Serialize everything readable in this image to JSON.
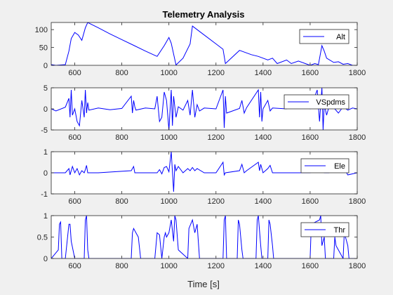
{
  "figure": {
    "title": "Telemetry Analysis",
    "xlabel": "Time [s]",
    "background": "#f0f0f0",
    "axes_background": "#ffffff",
    "line_color": "#0000ff"
  },
  "chart_data": [
    {
      "type": "line",
      "xlim": [
        500,
        1800
      ],
      "ylim": [
        0,
        120
      ],
      "xticks": [
        600,
        800,
        1000,
        1200,
        1400,
        1600,
        1800
      ],
      "yticks": [
        0,
        50,
        100
      ],
      "legend": "Alt",
      "legend_position": "top-right",
      "grid": false,
      "x": [
        500,
        520,
        560,
        575,
        585,
        600,
        615,
        630,
        645,
        655,
        700,
        750,
        800,
        850,
        900,
        940,
        950,
        980,
        1000,
        1010,
        1030,
        1060,
        1090,
        1100,
        1120,
        1150,
        1200,
        1230,
        1240,
        1300,
        1350,
        1380,
        1420,
        1440,
        1460,
        1500,
        1520,
        1550,
        1600,
        1620,
        1635,
        1650,
        1660,
        1670,
        1700,
        1720,
        1740,
        1760,
        1780,
        1800
      ],
      "y": [
        2,
        0,
        2,
        40,
        75,
        92,
        85,
        70,
        105,
        120,
        105,
        88,
        72,
        56,
        40,
        28,
        25,
        55,
        78,
        62,
        1,
        20,
        60,
        110,
        100,
        85,
        60,
        45,
        5,
        42,
        30,
        25,
        15,
        20,
        5,
        15,
        5,
        12,
        0,
        5,
        2,
        55,
        40,
        20,
        8,
        10,
        3,
        5,
        0,
        0
      ]
    },
    {
      "type": "line",
      "xlim": [
        500,
        1800
      ],
      "ylim": [
        -5,
        5
      ],
      "xticks": [
        600,
        800,
        1000,
        1200,
        1400,
        1600,
        1800
      ],
      "yticks": [
        -5,
        0,
        5
      ],
      "legend": "VSpdms",
      "legend_position": "top-right",
      "grid": false,
      "x": [
        500,
        520,
        560,
        575,
        580,
        585,
        590,
        600,
        610,
        620,
        630,
        640,
        645,
        650,
        655,
        660,
        700,
        750,
        800,
        840,
        845,
        850,
        855,
        860,
        900,
        940,
        950,
        960,
        970,
        980,
        990,
        1000,
        1010,
        1015,
        1020,
        1030,
        1040,
        1060,
        1080,
        1090,
        1100,
        1110,
        1120,
        1130,
        1150,
        1200,
        1230,
        1235,
        1240,
        1245,
        1300,
        1310,
        1320,
        1330,
        1380,
        1385,
        1390,
        1395,
        1400,
        1420,
        1430,
        1440,
        1500,
        1520,
        1600,
        1630,
        1640,
        1650,
        1655,
        1660,
        1670,
        1680,
        1700,
        1720,
        1740,
        1760,
        1780,
        1800
      ],
      "y": [
        0,
        -0.5,
        0.4,
        2.5,
        -2,
        4.5,
        -1.5,
        0,
        -3,
        -4,
        2,
        -2,
        4.5,
        -1,
        1.5,
        -0.3,
        0.2,
        -0.2,
        0.1,
        3,
        -1,
        2,
        0.5,
        -0.3,
        0.2,
        0,
        3,
        -3,
        -2,
        4,
        2,
        -5,
        4.5,
        -4,
        3,
        -2,
        0.5,
        -0.3,
        2,
        -1.5,
        4.5,
        -2,
        1,
        -0.5,
        0.2,
        0,
        4.5,
        -4.5,
        3,
        -1,
        0.1,
        2,
        -1,
        0.3,
        4.5,
        -2,
        4,
        -3,
        0,
        2,
        -0.5,
        0.2,
        0,
        2,
        0,
        4.5,
        -3,
        5,
        -5,
        1,
        -1.5,
        0.5,
        0.3,
        -1,
        0.5,
        -0.3,
        0.2,
        0
      ]
    },
    {
      "type": "line",
      "xlim": [
        500,
        1800
      ],
      "ylim": [
        -1,
        1
      ],
      "xticks": [
        600,
        800,
        1000,
        1200,
        1400,
        1600,
        1800
      ],
      "yticks": [
        -1,
        0,
        1
      ],
      "legend": "Ele",
      "legend_position": "top-right",
      "grid": false,
      "x": [
        500,
        560,
        575,
        580,
        590,
        600,
        610,
        620,
        630,
        640,
        645,
        650,
        655,
        700,
        840,
        850,
        855,
        860,
        900,
        950,
        960,
        970,
        980,
        990,
        1000,
        1010,
        1020,
        1025,
        1030,
        1040,
        1050,
        1060,
        1080,
        1090,
        1100,
        1110,
        1120,
        1150,
        1200,
        1230,
        1235,
        1240,
        1300,
        1310,
        1320,
        1330,
        1380,
        1385,
        1390,
        1400,
        1420,
        1430,
        1440,
        1500,
        1600,
        1640,
        1650,
        1655,
        1660,
        1680,
        1700,
        1720,
        1740,
        1760,
        1800
      ],
      "y": [
        0,
        0,
        0.2,
        -0.1,
        0.3,
        0,
        0.2,
        -0.1,
        0.1,
        0,
        0.15,
        0.35,
        0,
        0,
        0.1,
        0.3,
        0,
        0,
        0,
        0,
        0.15,
        -0.05,
        0.25,
        0.3,
        0.05,
        1,
        -0.9,
        0.4,
        0.1,
        0.3,
        0.15,
        0,
        0.2,
        0.1,
        0.25,
        0.1,
        0.2,
        0,
        0,
        0.5,
        -0.1,
        0,
        0.1,
        0.4,
        0,
        0.1,
        0.5,
        0.1,
        0.4,
        0,
        0.2,
        0.35,
        0,
        0,
        0,
        0.2,
        0.55,
        0.1,
        0,
        0,
        0.2,
        0.1,
        0.3,
        -0.1,
        0
      ]
    },
    {
      "type": "line",
      "xlim": [
        500,
        1800
      ],
      "ylim": [
        0,
        1
      ],
      "xticks": [
        600,
        800,
        1000,
        1200,
        1400,
        1600,
        1800
      ],
      "yticks": [
        0,
        0.5,
        1
      ],
      "legend": "Thr",
      "legend_position": "top-right",
      "grid": false,
      "x": [
        500,
        530,
        535,
        540,
        545,
        560,
        575,
        580,
        585,
        600,
        605,
        640,
        645,
        650,
        655,
        660,
        840,
        845,
        850,
        860,
        870,
        880,
        940,
        950,
        960,
        970,
        980,
        985,
        990,
        1000,
        1010,
        1020,
        1025,
        1030,
        1040,
        1080,
        1085,
        1100,
        1110,
        1120,
        1130,
        1230,
        1235,
        1240,
        1245,
        1290,
        1295,
        1300,
        1310,
        1315,
        1370,
        1375,
        1380,
        1390,
        1395,
        1420,
        1425,
        1430,
        1440,
        1445,
        1600,
        1605,
        1640,
        1645,
        1650,
        1660,
        1665,
        1700,
        1705,
        1710,
        1740,
        1745,
        1760,
        1765,
        1800
      ],
      "y": [
        0,
        0.2,
        0.8,
        0.85,
        0,
        0,
        0.8,
        0.8,
        0.4,
        0,
        0,
        0,
        0.9,
        1,
        0.2,
        0,
        0,
        0.6,
        0.7,
        0.6,
        0.5,
        0,
        0,
        0.6,
        0.55,
        0,
        0.5,
        0.6,
        0.5,
        0.6,
        0.9,
        0.4,
        1,
        0.9,
        0.2,
        0,
        0.7,
        0.9,
        0.6,
        0.8,
        0,
        0,
        0.9,
        1,
        0,
        0,
        0.9,
        0.8,
        0.2,
        0,
        0,
        0.9,
        1,
        0.3,
        0,
        0,
        0.9,
        0.8,
        0.3,
        0,
        0,
        0.8,
        0.9,
        1,
        0.3,
        0.5,
        0,
        0,
        0.5,
        0.3,
        0,
        0.6,
        0.3,
        0,
        0
      ]
    }
  ]
}
